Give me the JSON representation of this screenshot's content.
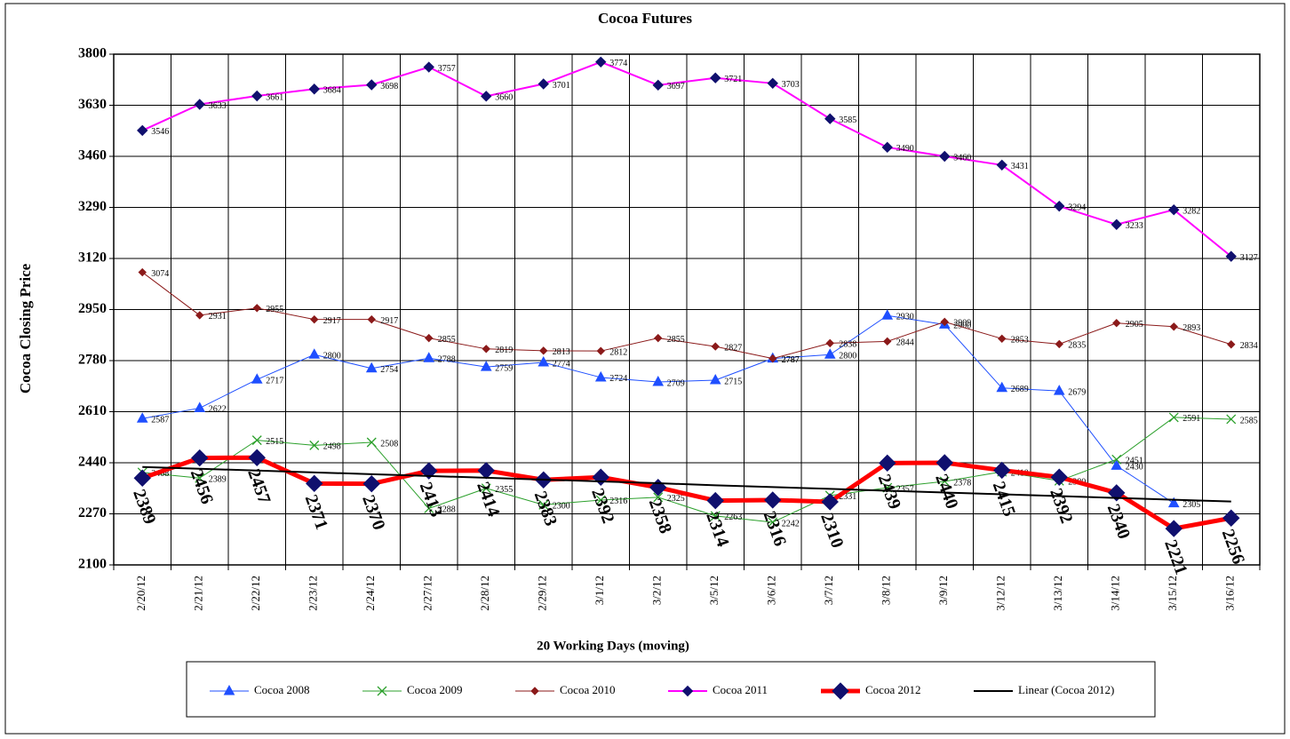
{
  "chart_data": {
    "type": "line",
    "title": "Cocoa Futures",
    "y_label": "Cocoa Closing Price",
    "x_label": "20 Working Days (moving)",
    "categories": [
      "2/20/12",
      "2/21/12",
      "2/22/12",
      "2/23/12",
      "2/24/12",
      "2/27/12",
      "2/28/12",
      "2/29/12",
      "3/1/12",
      "3/2/12",
      "3/5/12",
      "3/6/12",
      "3/7/12",
      "3/8/12",
      "3/9/12",
      "3/12/12",
      "3/13/12",
      "3/14/12",
      "3/15/12",
      "3/16/12"
    ],
    "ylim": [
      2100,
      3800
    ],
    "yticks": [
      2100,
      2270,
      2440,
      2610,
      2780,
      2950,
      3120,
      3290,
      3460,
      3630,
      3800
    ],
    "grid": true,
    "legend": "bottom",
    "series": [
      {
        "name": "Cocoa 2008",
        "color": "#1f4fff",
        "marker": "triangle",
        "marker_color": "#1f4fff",
        "line_width": 1,
        "labels": "small",
        "values": [
          2587,
          2622,
          2717,
          2800,
          2754,
          2788,
          2759,
          2774,
          2724,
          2709,
          2715,
          2787,
          2800,
          2930,
          2900,
          2689,
          2679,
          2430,
          2305,
          null
        ]
      },
      {
        "name": "Cocoa 2009",
        "color": "#2ca02c",
        "marker": "x",
        "marker_color": "#2ca02c",
        "line_width": 1,
        "labels": "small",
        "values": [
          2408,
          2389,
          2515,
          2498,
          2508,
          2288,
          2355,
          2300,
          2316,
          2325,
          2263,
          2242,
          2331,
          2357,
          2378,
          2410,
          2380,
          2451,
          2591,
          2585
        ]
      },
      {
        "name": "Cocoa 2010",
        "color": "#8b1a1a",
        "marker": "diamond-small",
        "marker_color": "#8b1a1a",
        "line_width": 1,
        "labels": "small",
        "values": [
          3074,
          2931,
          2955,
          2917,
          2917,
          2855,
          2819,
          2813,
          2812,
          2855,
          2827,
          2787,
          2838,
          2844,
          2909,
          2853,
          2835,
          2905,
          2893,
          2834
        ]
      },
      {
        "name": "Cocoa 2011",
        "color": "#ff00ff",
        "marker": "diamond",
        "marker_color": "#10106e",
        "line_width": 2,
        "labels": "small",
        "values": [
          3546,
          3633,
          3661,
          3684,
          3698,
          3757,
          3660,
          3701,
          3774,
          3697,
          3721,
          3703,
          3585,
          3490,
          3460,
          3431,
          3294,
          3233,
          3282,
          3127
        ]
      },
      {
        "name": "Cocoa 2012",
        "color": "#ff0000",
        "marker": "diamond-large",
        "marker_color": "#10106e",
        "line_width": 5,
        "labels": "large",
        "values": [
          2389,
          2456,
          2457,
          2371,
          2370,
          2413,
          2414,
          2383,
          2392,
          2358,
          2314,
          2316,
          2310,
          2439,
          2440,
          2415,
          2392,
          2340,
          2221,
          2256
        ]
      },
      {
        "name": "Linear (Cocoa 2012)",
        "color": "#000000",
        "marker": "none",
        "marker_color": "#000000",
        "line_width": 2,
        "labels": "none",
        "values": [
          2426,
          2420,
          2414,
          2408,
          2402,
          2396,
          2390,
          2384,
          2378,
          2372,
          2365,
          2359,
          2353,
          2347,
          2341,
          2335,
          2329,
          2323,
          2317,
          2311
        ]
      }
    ]
  }
}
